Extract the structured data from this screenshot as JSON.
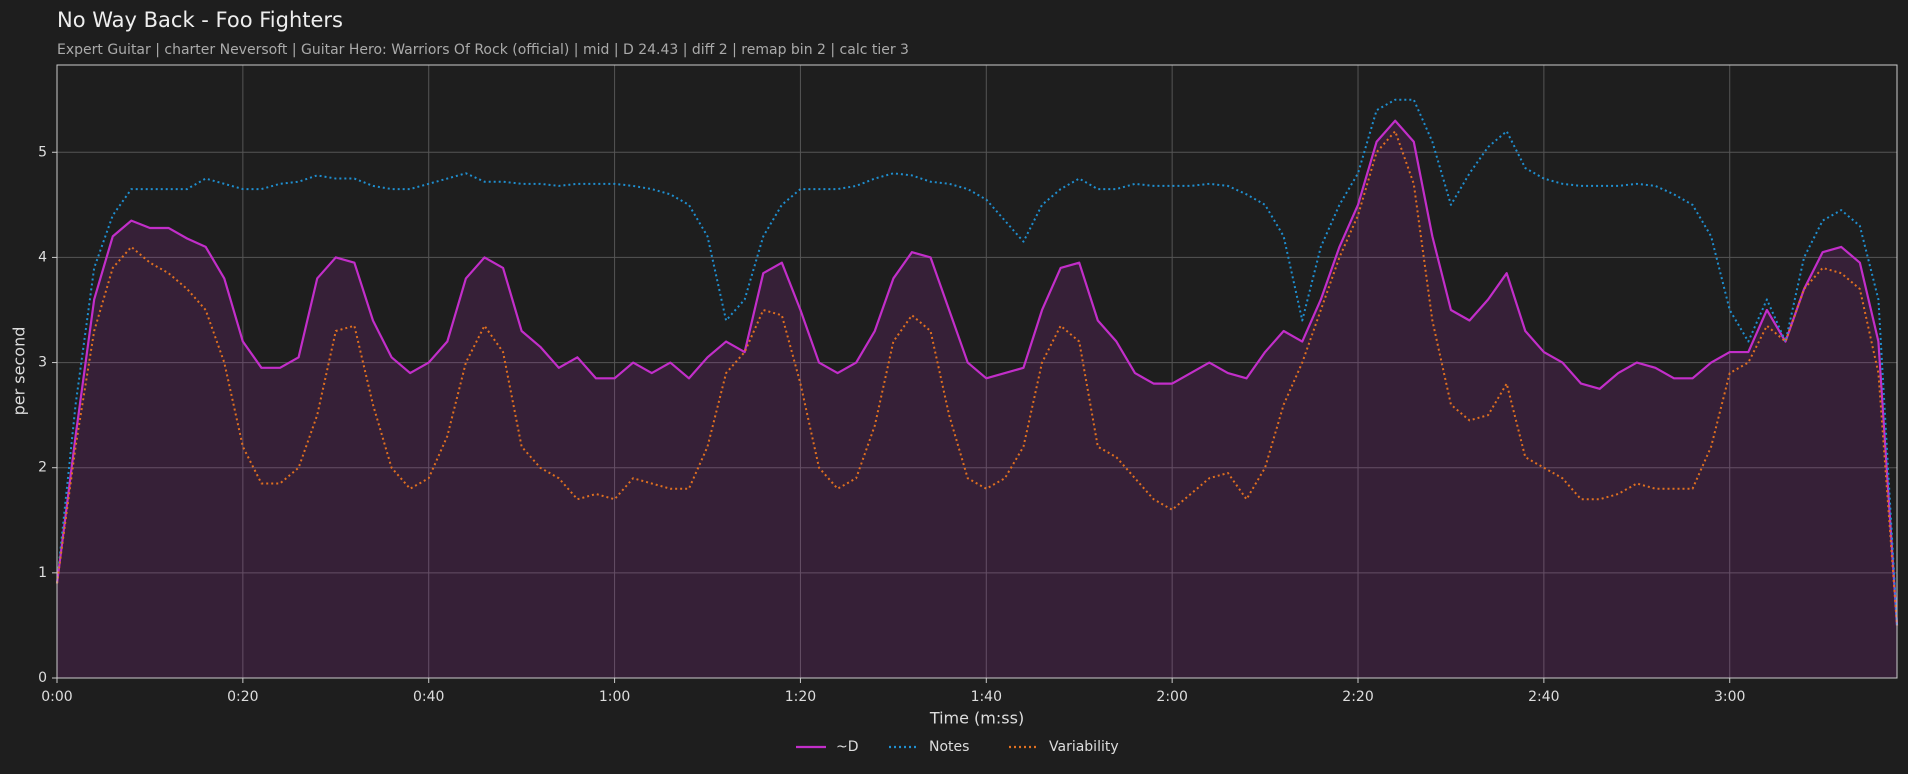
{
  "chart_data": {
    "type": "line",
    "title": "No Way Back - Foo Fighters",
    "subtitle": "Expert Guitar  |  charter Neversoft  |  Guitar Hero: Warriors Of Rock (official)  |  mid  |  D 24.43  |  diff 2  |  remap bin 2  |  calc tier 3",
    "x_label": "Time (m:ss)",
    "y_label": "per second",
    "x": [
      0,
      2,
      4,
      6,
      8,
      10,
      12,
      14,
      16,
      18,
      20,
      22,
      24,
      26,
      28,
      30,
      32,
      34,
      36,
      38,
      40,
      42,
      44,
      46,
      48,
      50,
      52,
      54,
      56,
      58,
      60,
      62,
      64,
      66,
      68,
      70,
      72,
      74,
      76,
      78,
      80,
      82,
      84,
      86,
      88,
      90,
      92,
      94,
      96,
      98,
      100,
      102,
      104,
      106,
      108,
      110,
      112,
      114,
      116,
      118,
      120,
      122,
      124,
      126,
      128,
      130,
      132,
      134,
      136,
      138,
      140,
      142,
      144,
      146,
      148,
      150,
      152,
      154,
      156,
      158,
      160,
      162,
      164,
      166,
      168,
      170,
      172,
      174,
      176,
      178,
      180,
      182,
      184,
      186,
      188,
      190,
      192,
      194,
      196,
      198
    ],
    "series": [
      {
        "name": "~D",
        "color": "#c22ec9",
        "style": "solid",
        "fill": true,
        "values": [
          0.9,
          2.3,
          3.6,
          4.2,
          4.35,
          4.28,
          4.28,
          4.18,
          4.1,
          3.8,
          3.2,
          2.95,
          2.95,
          3.05,
          3.8,
          4.0,
          3.95,
          3.4,
          3.05,
          2.9,
          3.0,
          3.2,
          3.8,
          4.0,
          3.9,
          3.3,
          3.15,
          2.95,
          3.05,
          2.85,
          2.85,
          3.0,
          2.9,
          3.0,
          2.85,
          3.05,
          3.2,
          3.1,
          3.85,
          3.95,
          3.5,
          3.0,
          2.9,
          3.0,
          3.3,
          3.8,
          4.05,
          4.0,
          3.5,
          3.0,
          2.85,
          2.9,
          2.95,
          3.5,
          3.9,
          3.95,
          3.4,
          3.2,
          2.9,
          2.8,
          2.8,
          2.9,
          3.0,
          2.9,
          2.85,
          3.1,
          3.3,
          3.2,
          3.6,
          4.1,
          4.5,
          5.1,
          5.3,
          5.1,
          4.2,
          3.5,
          3.4,
          3.6,
          3.85,
          3.3,
          3.1,
          3.0,
          2.8,
          2.75,
          2.9,
          3.0,
          2.95,
          2.85,
          2.85,
          3.0,
          3.1,
          3.1,
          3.5,
          3.2,
          3.7,
          4.05,
          4.1,
          3.95,
          3.2,
          0.5
        ]
      },
      {
        "name": "Notes",
        "color": "#1f8fd0",
        "style": "dotted",
        "fill": false,
        "values": [
          0.9,
          2.6,
          3.9,
          4.4,
          4.65,
          4.65,
          4.65,
          4.65,
          4.75,
          4.7,
          4.65,
          4.65,
          4.7,
          4.72,
          4.78,
          4.75,
          4.75,
          4.68,
          4.65,
          4.65,
          4.7,
          4.75,
          4.8,
          4.72,
          4.72,
          4.7,
          4.7,
          4.68,
          4.7,
          4.7,
          4.7,
          4.68,
          4.65,
          4.6,
          4.5,
          4.2,
          3.4,
          3.6,
          4.2,
          4.5,
          4.65,
          4.65,
          4.65,
          4.68,
          4.75,
          4.8,
          4.78,
          4.72,
          4.7,
          4.65,
          4.55,
          4.35,
          4.15,
          4.5,
          4.65,
          4.75,
          4.65,
          4.65,
          4.7,
          4.68,
          4.68,
          4.68,
          4.7,
          4.68,
          4.6,
          4.5,
          4.2,
          3.4,
          4.1,
          4.5,
          4.8,
          5.4,
          5.5,
          5.5,
          5.1,
          4.5,
          4.8,
          5.05,
          5.2,
          4.85,
          4.75,
          4.7,
          4.68,
          4.68,
          4.68,
          4.7,
          4.68,
          4.6,
          4.5,
          4.2,
          3.5,
          3.2,
          3.6,
          3.2,
          4.0,
          4.35,
          4.45,
          4.3,
          3.6,
          0.5
        ]
      },
      {
        "name": "Variability",
        "color": "#e07020",
        "style": "dotted",
        "fill": false,
        "values": [
          0.9,
          2.2,
          3.3,
          3.9,
          4.1,
          3.95,
          3.85,
          3.7,
          3.5,
          3.0,
          2.2,
          1.85,
          1.85,
          2.0,
          2.5,
          3.3,
          3.35,
          2.6,
          2.0,
          1.8,
          1.9,
          2.3,
          3.0,
          3.35,
          3.1,
          2.2,
          2.0,
          1.9,
          1.7,
          1.75,
          1.7,
          1.9,
          1.85,
          1.8,
          1.8,
          2.2,
          2.9,
          3.1,
          3.5,
          3.45,
          2.8,
          2.0,
          1.8,
          1.9,
          2.4,
          3.2,
          3.45,
          3.3,
          2.5,
          1.9,
          1.8,
          1.9,
          2.2,
          3.0,
          3.35,
          3.2,
          2.2,
          2.1,
          1.9,
          1.7,
          1.6,
          1.75,
          1.9,
          1.95,
          1.7,
          2.0,
          2.6,
          3.0,
          3.5,
          4.0,
          4.4,
          5.0,
          5.2,
          4.7,
          3.4,
          2.6,
          2.45,
          2.5,
          2.8,
          2.1,
          2.0,
          1.9,
          1.7,
          1.7,
          1.75,
          1.85,
          1.8,
          1.8,
          1.8,
          2.2,
          2.9,
          3.0,
          3.35,
          3.2,
          3.7,
          3.9,
          3.85,
          3.7,
          2.9,
          0.5
        ]
      }
    ],
    "xlim": [
      0,
      198
    ],
    "ylim": [
      0,
      5.83
    ],
    "xticks": [
      {
        "value": 0,
        "label": "0:00"
      },
      {
        "value": 20,
        "label": "0:20"
      },
      {
        "value": 40,
        "label": "0:40"
      },
      {
        "value": 60,
        "label": "1:00"
      },
      {
        "value": 80,
        "label": "1:20"
      },
      {
        "value": 100,
        "label": "1:40"
      },
      {
        "value": 120,
        "label": "2:00"
      },
      {
        "value": 140,
        "label": "2:20"
      },
      {
        "value": 160,
        "label": "2:40"
      },
      {
        "value": 180,
        "label": "3:00"
      }
    ],
    "yticks": [
      0,
      1,
      2,
      3,
      4,
      5
    ],
    "grid": true,
    "legend": "bottom"
  }
}
